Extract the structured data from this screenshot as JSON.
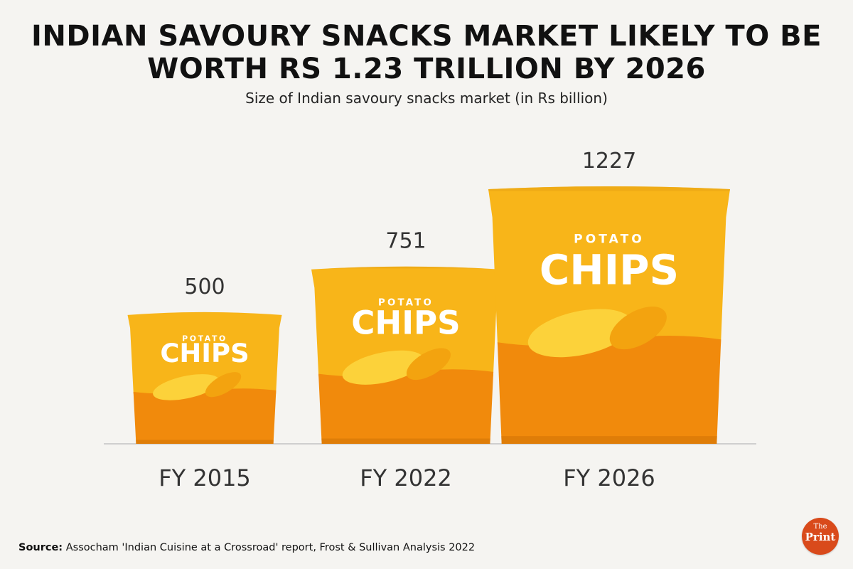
{
  "title_line1": "INDIAN SAVOURY SNACKS MARKET LIKELY TO BE",
  "title_line2": "WORTH RS 1.23 TRILLION BY 2026",
  "subtitle": "Size of Indian savoury snacks market (in Rs billion)",
  "source_label": "Source:",
  "source_text": " Assocham 'Indian Cuisine at a Crossroad' report, Frost & Sullivan Analysis 2022",
  "logo": {
    "top": "The",
    "bottom": "Print"
  },
  "bag_text": {
    "top": "POTATO",
    "main": "CHIPS"
  },
  "colors": {
    "bag_top": "#f8b519",
    "bag_bottom": "#f18a0c",
    "chip": "#fcd23a",
    "chip_shadow": "#f3a30f",
    "baseline": "#cfcfcf",
    "logo": "#d94a1b"
  },
  "chart_data": {
    "type": "bar",
    "categories": [
      "FY 2015",
      "FY 2022",
      "FY 2026"
    ],
    "values": [
      500,
      751,
      1227
    ],
    "title": "INDIAN SAVOURY SNACKS MARKET LIKELY TO BE WORTH RS 1.23 TRILLION BY 2026",
    "subtitle": "Size of Indian savoury snacks market (in Rs billion)",
    "xlabel": "",
    "ylabel": "",
    "grid": false,
    "mark": "chips-bag"
  }
}
